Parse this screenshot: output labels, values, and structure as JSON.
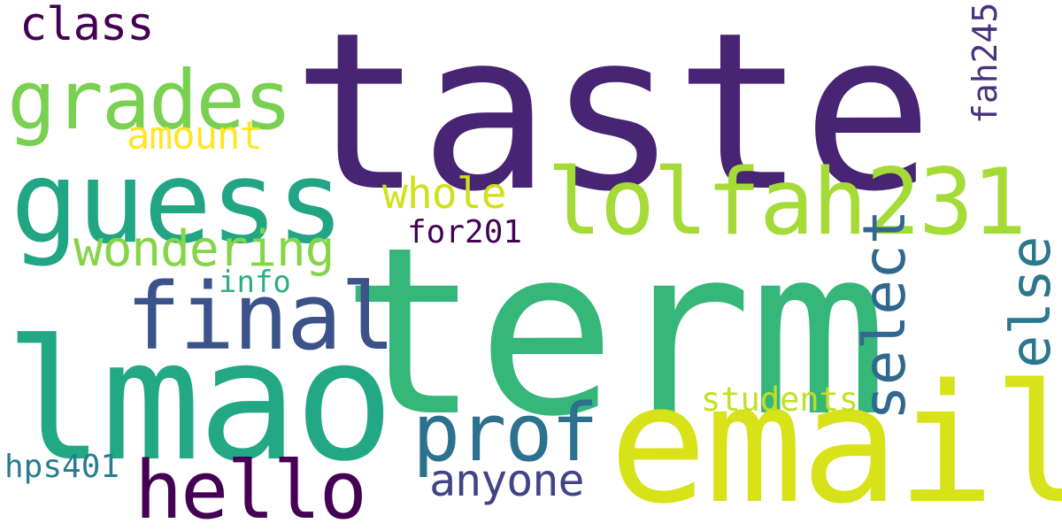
{
  "words": {
    "taste": {
      "text": "taste",
      "color": "#482475"
    },
    "term": {
      "text": "term",
      "color": "#35b779"
    },
    "guess": {
      "text": "guess",
      "color": "#21a585"
    },
    "lmao": {
      "text": "lmao",
      "color": "#22a884"
    },
    "email": {
      "text": "email",
      "color": "#d8e219"
    },
    "lolfah231": {
      "text": "lolfah231",
      "color": "#a5db36"
    },
    "grades": {
      "text": "grades",
      "color": "#7ad151"
    },
    "final": {
      "text": "final",
      "color": "#3b528b"
    },
    "hello": {
      "text": "hello",
      "color": "#440154"
    },
    "prof": {
      "text": "prof",
      "color": "#2c728e"
    },
    "class": {
      "text": "class",
      "color": "#440154"
    },
    "amount": {
      "text": "amount",
      "color": "#fde725"
    },
    "whole": {
      "text": "whole",
      "color": "#d0e11c"
    },
    "wondering": {
      "text": "wondering",
      "color": "#86d549"
    },
    "anyone": {
      "text": "anyone",
      "color": "#414487"
    },
    "for201": {
      "text": "for201",
      "color": "#440154"
    },
    "info": {
      "text": "info",
      "color": "#2ab07f"
    },
    "students": {
      "text": "students",
      "color": "#c2df23"
    },
    "hps401": {
      "text": "hps401",
      "color": "#287c8e"
    },
    "select": {
      "text": "select",
      "color": "#31688e"
    },
    "else": {
      "text": "else",
      "color": "#2a788e"
    },
    "fah245": {
      "text": "fah245",
      "color": "#46327e"
    }
  }
}
